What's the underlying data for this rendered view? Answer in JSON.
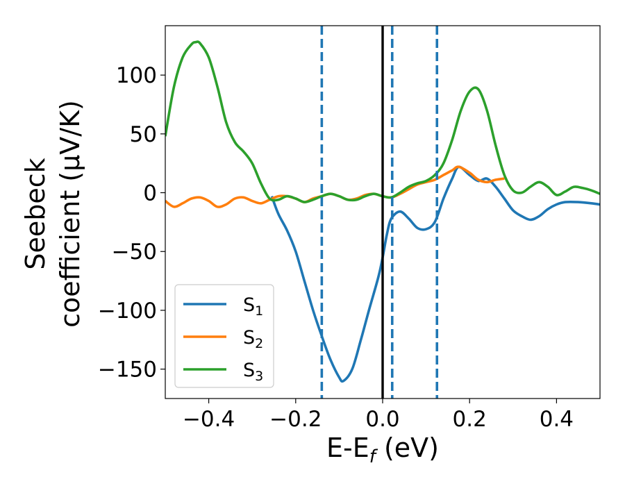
{
  "chart_data": {
    "type": "line",
    "xlabel": "E-E",
    "xlabel_sub": "f",
    "xlabel_unit": " (eV)",
    "ylabel_line1": "Seebeck",
    "ylabel_line2": "coefficient  (μV/K)",
    "xlim": [
      -0.5,
      0.5
    ],
    "ylim": [
      -175,
      142
    ],
    "xticks": [
      -0.4,
      -0.2,
      0.0,
      0.2,
      0.4
    ],
    "xtick_labels": [
      "−0.4",
      "−0.2",
      "0.0",
      "0.2",
      "0.4"
    ],
    "yticks": [
      -150,
      -100,
      -50,
      0,
      50,
      100
    ],
    "ytick_labels": [
      "−150",
      "−100",
      "−50",
      "0",
      "50",
      "100"
    ],
    "grid": false,
    "legend_position": "lower-left",
    "vlines": [
      {
        "x": 0.0,
        "style": "solid",
        "color": "#000000"
      },
      {
        "x": -0.14,
        "style": "dashed",
        "color": "#1f77b4"
      },
      {
        "x": 0.022,
        "style": "dashed",
        "color": "#1f77b4"
      },
      {
        "x": 0.125,
        "style": "dashed",
        "color": "#1f77b4"
      }
    ],
    "series": [
      {
        "name": "S",
        "sub": "1",
        "color": "#1f77b4",
        "x": [
          -0.255,
          -0.24,
          -0.22,
          -0.2,
          -0.18,
          -0.16,
          -0.14,
          -0.12,
          -0.1,
          -0.09,
          -0.07,
          -0.05,
          -0.03,
          -0.01,
          0.0,
          0.01,
          0.02,
          0.04,
          0.06,
          0.08,
          0.1,
          0.12,
          0.14,
          0.16,
          0.175,
          0.2,
          0.22,
          0.24,
          0.26,
          0.28,
          0.3,
          0.32,
          0.34,
          0.36,
          0.38,
          0.4,
          0.42,
          0.45,
          0.48,
          0.5
        ],
        "y": [
          -3,
          -18,
          -32,
          -50,
          -75,
          -100,
          -122,
          -142,
          -157,
          -160,
          -150,
          -125,
          -98,
          -72,
          -55,
          -35,
          -22,
          -16,
          -22,
          -30,
          -31,
          -25,
          -5,
          12,
          22,
          15,
          10,
          12,
          5,
          -5,
          -15,
          -20,
          -23,
          -20,
          -14,
          -10,
          -8,
          -8,
          -9,
          -10
        ]
      },
      {
        "name": "S",
        "sub": "2",
        "color": "#ff7f0e",
        "x": [
          -0.5,
          -0.48,
          -0.46,
          -0.44,
          -0.42,
          -0.4,
          -0.38,
          -0.36,
          -0.34,
          -0.32,
          -0.3,
          -0.28,
          -0.26,
          -0.24,
          -0.22,
          -0.2,
          -0.18,
          -0.16,
          -0.14,
          -0.12,
          -0.1,
          -0.08,
          -0.06,
          -0.04,
          -0.02,
          0.0,
          0.02,
          0.04,
          0.06,
          0.08,
          0.1,
          0.12,
          0.14,
          0.16,
          0.175,
          0.2,
          0.22,
          0.24,
          0.26,
          0.28
        ],
        "y": [
          -7,
          -12,
          -9,
          -5,
          -4,
          -7,
          -12,
          -10,
          -5,
          -4,
          -7,
          -9,
          -6,
          -3,
          -3,
          -5,
          -8,
          -5,
          -3,
          -1,
          -3,
          -6,
          -5,
          -2,
          -1,
          -3,
          -4,
          -1,
          3,
          7,
          9,
          11,
          15,
          19,
          22,
          17,
          11,
          9,
          11,
          12
        ]
      },
      {
        "name": "S",
        "sub": "3",
        "color": "#2ca02c",
        "x": [
          -0.5,
          -0.48,
          -0.46,
          -0.44,
          -0.43,
          -0.42,
          -0.4,
          -0.38,
          -0.36,
          -0.34,
          -0.32,
          -0.3,
          -0.28,
          -0.26,
          -0.24,
          -0.22,
          -0.2,
          -0.18,
          -0.16,
          -0.14,
          -0.12,
          -0.1,
          -0.08,
          -0.06,
          -0.04,
          -0.02,
          0.0,
          0.02,
          0.04,
          0.06,
          0.08,
          0.1,
          0.12,
          0.14,
          0.16,
          0.18,
          0.2,
          0.22,
          0.24,
          0.26,
          0.28,
          0.3,
          0.32,
          0.34,
          0.36,
          0.38,
          0.4,
          0.42,
          0.44,
          0.46,
          0.48,
          0.5
        ],
        "y": [
          48,
          90,
          115,
          126,
          128,
          127,
          115,
          90,
          60,
          43,
          35,
          25,
          8,
          -5,
          -6,
          -3,
          -5,
          -8,
          -6,
          -3,
          -1,
          -3,
          -6,
          -6,
          -3,
          -1,
          -3,
          -4,
          0,
          5,
          8,
          10,
          15,
          25,
          45,
          70,
          86,
          88,
          70,
          40,
          15,
          2,
          0,
          5,
          9,
          5,
          -2,
          1,
          5,
          4,
          2,
          -1
        ]
      }
    ]
  }
}
